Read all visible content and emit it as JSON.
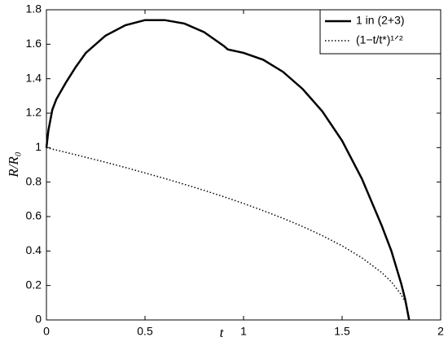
{
  "chart_data": {
    "type": "line",
    "xlabel": "t",
    "ylabel": "R/R₀",
    "xlim": [
      0,
      2
    ],
    "ylim": [
      0,
      1.8
    ],
    "xticks": [
      0,
      0.5,
      1,
      1.5,
      2
    ],
    "yticks": [
      0,
      0.2,
      0.4,
      0.6,
      0.8,
      1,
      1.2,
      1.4,
      1.6,
      1.8
    ],
    "legend": "upper right",
    "series": [
      {
        "name": "1 in (2+3)",
        "color": "#000000",
        "style": "solid",
        "x": [
          0,
          0.01,
          0.03,
          0.05,
          0.1,
          0.15,
          0.2,
          0.3,
          0.4,
          0.5,
          0.6,
          0.7,
          0.8,
          0.9,
          0.92,
          1.0,
          1.1,
          1.2,
          1.3,
          1.4,
          1.5,
          1.6,
          1.7,
          1.75,
          1.8,
          1.82,
          1.84
        ],
        "values": [
          1.0,
          1.1,
          1.22,
          1.28,
          1.38,
          1.47,
          1.55,
          1.65,
          1.71,
          1.74,
          1.74,
          1.72,
          1.67,
          1.59,
          1.57,
          1.55,
          1.51,
          1.44,
          1.34,
          1.21,
          1.04,
          0.82,
          0.55,
          0.4,
          0.21,
          0.12,
          0
        ]
      },
      {
        "name": "(1−t/t*)¹ᐟ²",
        "color": "#000000",
        "style": "dotted",
        "x": [
          0,
          0.1,
          0.2,
          0.3,
          0.4,
          0.5,
          0.6,
          0.7,
          0.8,
          0.9,
          1.0,
          1.1,
          1.2,
          1.3,
          1.4,
          1.5,
          1.6,
          1.7,
          1.75,
          1.8,
          1.82,
          1.84
        ],
        "values": [
          1,
          0.972,
          0.944,
          0.915,
          0.885,
          0.853,
          0.821,
          0.787,
          0.752,
          0.715,
          0.676,
          0.634,
          0.59,
          0.542,
          0.489,
          0.43,
          0.361,
          0.276,
          0.221,
          0.147,
          0.104,
          0
        ]
      }
    ]
  }
}
